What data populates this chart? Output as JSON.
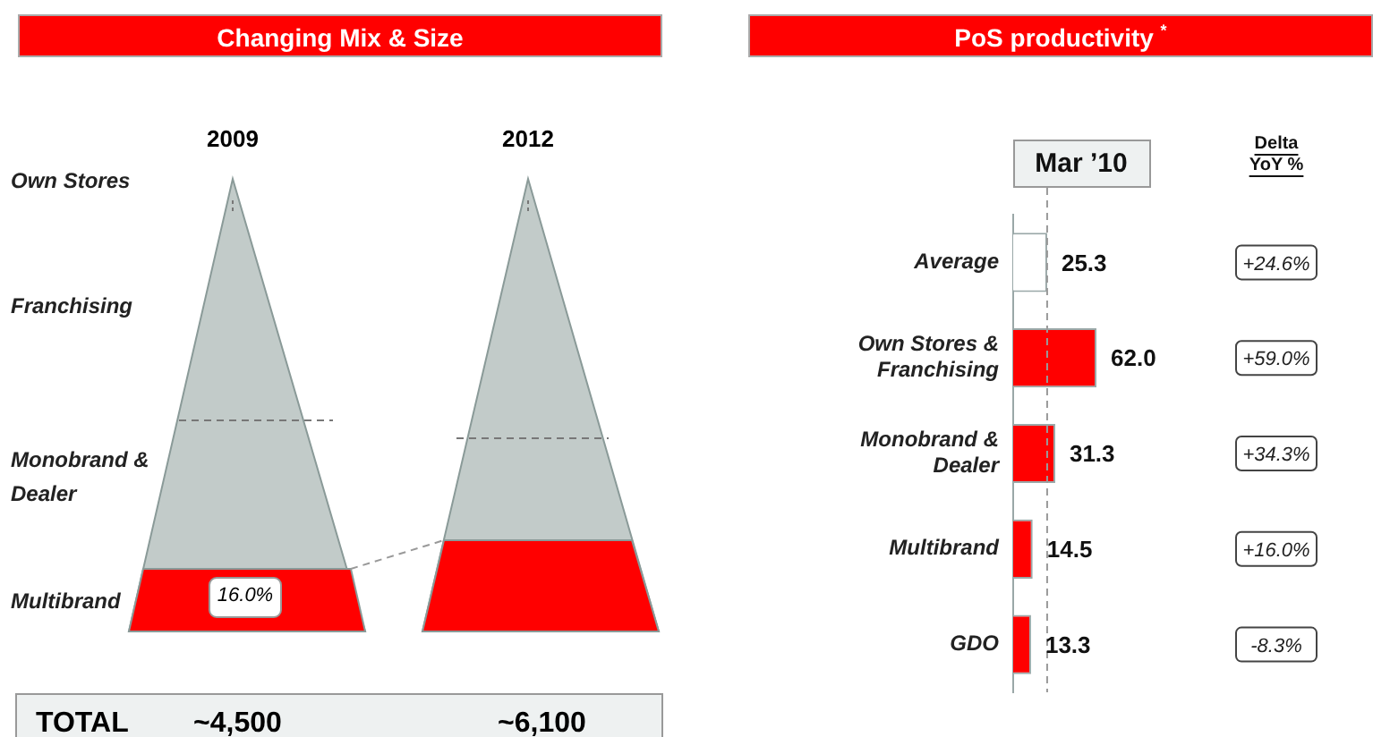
{
  "chart_data": [
    {
      "type": "other",
      "title": "Changing Mix & Size",
      "categories": [
        "2009",
        "2012"
      ],
      "annotations": [
        "Own Stores",
        "Franchising",
        "Monobrand & Dealer",
        "Multibrand",
        "16.0%",
        "TOTAL",
        "~4,500",
        "~6,100"
      ]
    },
    {
      "type": "bar",
      "orientation": "horizontal",
      "title": "PoS productivity $^{*}$",
      "subtitle": "Mar ’10",
      "categories": [
        "Average",
        "Own Stores & Franchising",
        "Monobrand & Dealer",
        "Multibrand",
        "GDO"
      ],
      "values": [
        25.3,
        62.0,
        31.3,
        14.5,
        13.3
      ],
      "colors": [
        "#ffffff",
        "#ff0000",
        "#ff0000",
        "#ff0000",
        "#ff0000"
      ],
      "value_labels": [
        "25.3",
        "62.0",
        "31.3",
        "14.5",
        "13.3"
      ],
      "tick_labels": "y",
      "ref_lines": [
        {
          "axis": "x",
          "value": 25.3,
          "color": "#9a9a9a",
          "line_style": "dashed"
        }
      ],
      "annotations": [
        "Delta YoY %",
        "+24.6%",
        "+59.0%",
        "+34.3%",
        "+16.0%",
        "-8.3%"
      ]
    }
  ]
}
